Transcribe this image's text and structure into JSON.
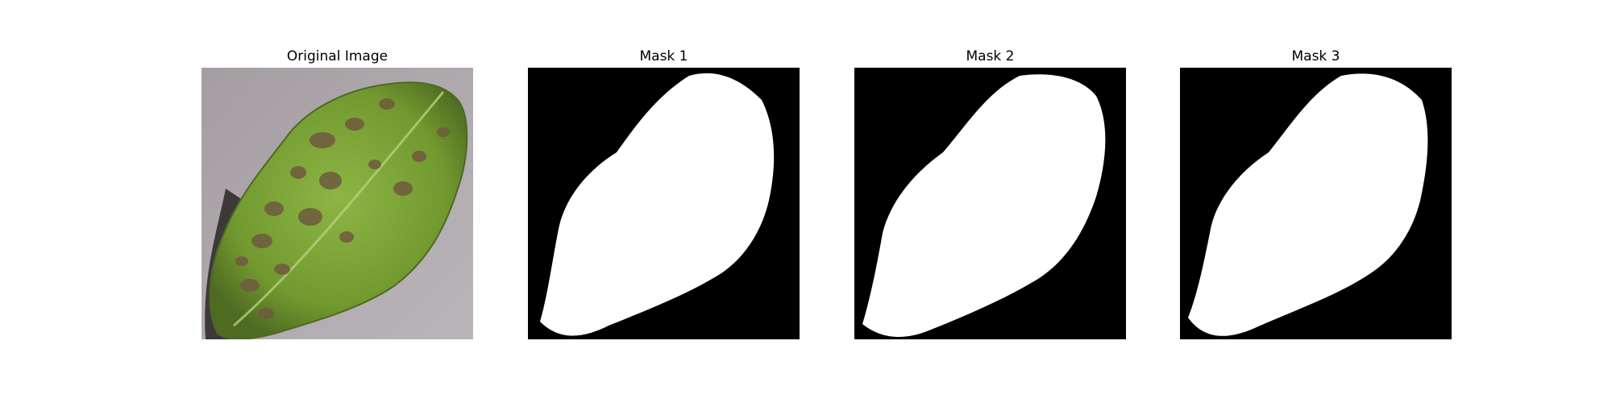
{
  "panels": [
    {
      "id": "original",
      "title": "Original Image"
    },
    {
      "id": "mask1",
      "title": "Mask 1"
    },
    {
      "id": "mask2",
      "title": "Mask 2"
    },
    {
      "id": "mask3",
      "title": "Mask 3"
    }
  ],
  "colors": {
    "background": "#ffffff",
    "mask_background": "#000000",
    "mask_foreground": "#ffffff",
    "surface_gray": "#a9a3a8",
    "leaf_green": "#7ea33c",
    "leaf_dark": "#4d6a22",
    "lesion_brown": "#6f5a3e",
    "shadow": "#2a2626"
  }
}
